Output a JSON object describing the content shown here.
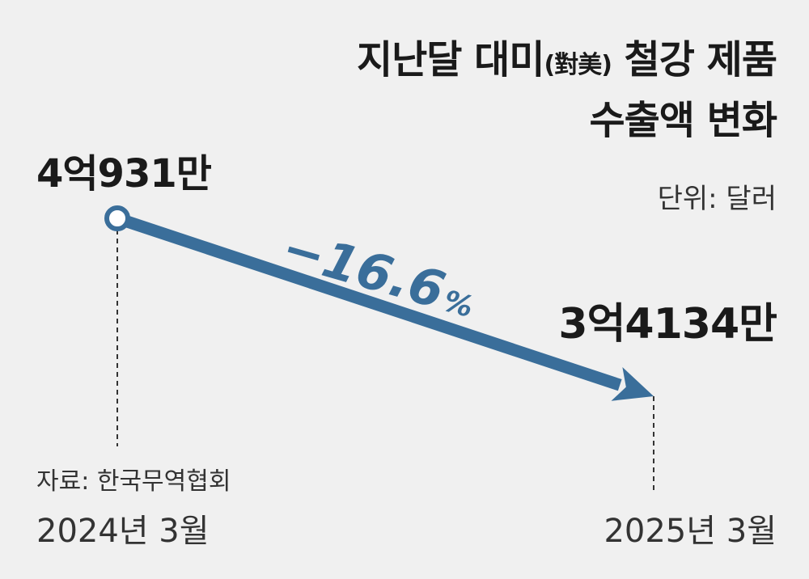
{
  "chart_data": {
    "type": "line",
    "title_line1_main": "지난달 대미",
    "title_line1_paren": "(對美)",
    "title_line1_rest": "철강 제품",
    "title_line2": "수출액 변화",
    "unit": "단위: 달러",
    "x": [
      "2024년 3월",
      "2025년 3월"
    ],
    "values": [
      409310000,
      341340000
    ],
    "value_labels": [
      "4억931만",
      "3억4134만"
    ],
    "change_label": "−16.6",
    "change_unit": "%",
    "source": "자료: 한국무역협회",
    "colors": {
      "arrow": "#3a6e9a",
      "text": "#1a1a1a",
      "background": "#f0f0f0"
    }
  }
}
